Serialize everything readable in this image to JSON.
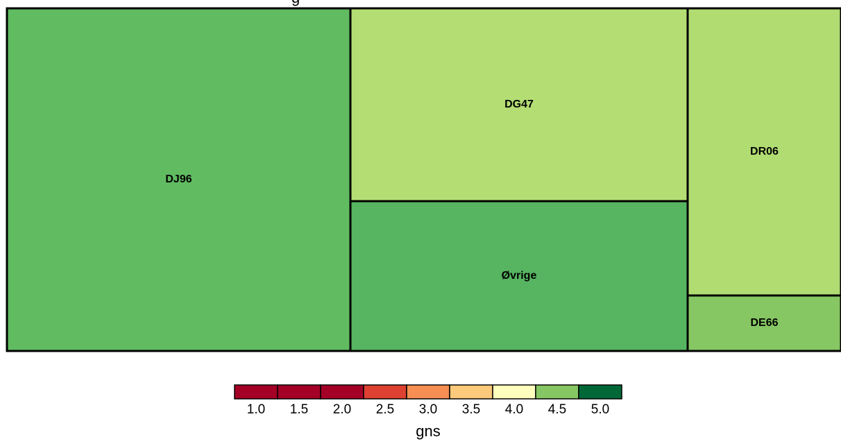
{
  "chart_data": {
    "type": "treemap",
    "title_fragment": "g",
    "tiles": [
      {
        "label": "DJ96",
        "value": 40.8,
        "gns": 4.62,
        "color": "#61BB61"
      },
      {
        "label": "DG47",
        "value": 23.0,
        "gns": 4.25,
        "color": "#B4DE74"
      },
      {
        "label": "Øvrige",
        "value": 17.9,
        "gns": 4.72,
        "color": "#57B461"
      },
      {
        "label": "DR06",
        "value": 14.1,
        "gns": 4.28,
        "color": "#B0DC72"
      },
      {
        "label": "DE66",
        "value": 4.2,
        "gns": 4.45,
        "color": "#86C763"
      }
    ],
    "legend": {
      "title": "gns",
      "ticks": [
        "1.0",
        "1.5",
        "2.0",
        "2.5",
        "3.0",
        "3.5",
        "4.0",
        "4.5",
        "5.0"
      ],
      "colors": [
        "#A50026",
        "#A50026",
        "#A50026",
        "#DE4131",
        "#F78E53",
        "#FDC97A",
        "#FEFEBD",
        "#86C763",
        "#006837"
      ],
      "placement": "bottom"
    }
  }
}
